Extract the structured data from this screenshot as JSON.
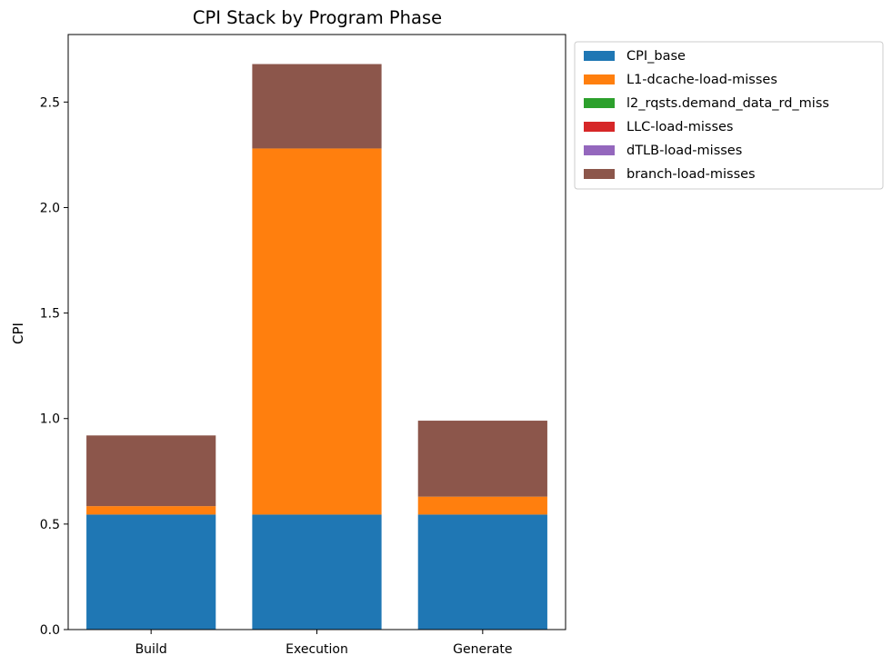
{
  "chart_data": {
    "type": "bar",
    "stacked": true,
    "title": "CPI Stack by Program Phase",
    "xlabel": "",
    "ylabel": "CPI",
    "ylim": [
      0,
      2.82
    ],
    "yticks": [
      0.0,
      0.5,
      1.0,
      1.5,
      2.0,
      2.5
    ],
    "ytick_labels": [
      "0.0",
      "0.5",
      "1.0",
      "1.5",
      "2.0",
      "2.5"
    ],
    "categories": [
      "Build",
      "Execution",
      "Generate"
    ],
    "legend_position": "outside-top-right",
    "grid": false,
    "series": [
      {
        "name": "CPI_base",
        "color": "#1f77b4",
        "values": [
          0.545,
          0.545,
          0.545
        ]
      },
      {
        "name": "L1-dcache-load-misses",
        "color": "#ff7f0e",
        "values": [
          0.04,
          1.735,
          0.085
        ]
      },
      {
        "name": "l2_rqsts.demand_data_rd_miss",
        "color": "#2ca02c",
        "values": [
          0,
          0,
          0
        ]
      },
      {
        "name": "LLC-load-misses",
        "color": "#d62728",
        "values": [
          0,
          0,
          0
        ]
      },
      {
        "name": "dTLB-load-misses",
        "color": "#9467bd",
        "values": [
          0,
          0,
          0
        ]
      },
      {
        "name": "branch-load-misses",
        "color": "#8c564b",
        "values": [
          0.335,
          0.4,
          0.36
        ]
      }
    ]
  }
}
